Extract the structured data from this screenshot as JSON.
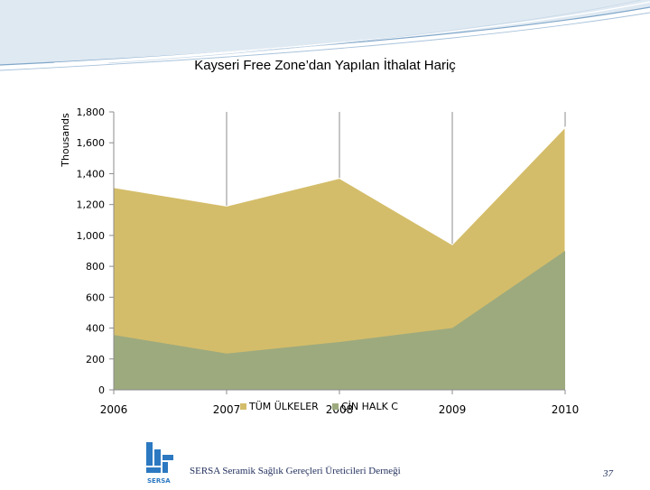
{
  "chart_data": {
    "type": "area",
    "title": "Kayseri Free Zone’dan Yapılan  İthalat Hariç",
    "ylabel": "Thousands",
    "xlabel": "",
    "x": [
      "2006",
      "2007",
      "2008",
      "2009",
      "2010"
    ],
    "ylim": [
      0,
      1800
    ],
    "yticks": [
      "0",
      "200",
      "400",
      "600",
      "800",
      "1,000",
      "1,200",
      "1,400",
      "1,600",
      "1,800"
    ],
    "grid": "vertical lines at categories",
    "stacked": false,
    "series": [
      {
        "name": "TÜM ÜLKELER",
        "values": [
          1310,
          1190,
          1370,
          940,
          1700
        ],
        "color": "#d4bd6a"
      },
      {
        "name": "ÇİN HALK C",
        "values": [
          355,
          235,
          310,
          400,
          900
        ],
        "color": "#9daa7e"
      }
    ],
    "legend": "bottom"
  },
  "footer": {
    "logo_text": "SERSA",
    "org_name": "SERSA Seramik Sağlık Gereçleri Üreticileri Derneği",
    "page_number": "37"
  },
  "colors": {
    "header_swoosh": "#7fa6c9",
    "footer_text": "#1f2d5a",
    "logo_blue": "#2c79c1"
  }
}
